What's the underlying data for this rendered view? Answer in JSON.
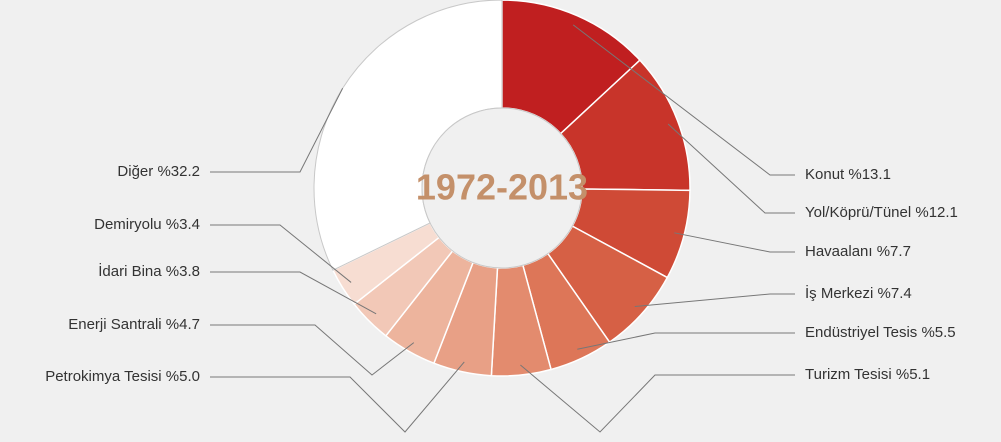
{
  "chart_data": {
    "type": "donut",
    "title": "1972-2013",
    "categories": [
      "Konut",
      "Yol/Köprü/Tünel",
      "Havaalanı",
      "İş Merkezi",
      "Endüstriyel Tesis",
      "Turizm Tesisi",
      "Petrokimya Tesisi",
      "Enerji Santrali",
      "İdari Bina",
      "Demiryolu",
      "Diğer"
    ],
    "values": [
      13.1,
      12.1,
      7.7,
      7.4,
      5.5,
      5.1,
      5.0,
      4.7,
      3.8,
      3.4,
      32.2
    ],
    "value_labels": [
      "%13.1",
      "%12.1",
      "%7.7",
      "%7.4",
      "%5.5",
      "%5.1",
      "%5.0",
      "%4.7",
      "%3.8",
      "%3.4",
      "%32.2"
    ],
    "colors": [
      "#c01f20",
      "#c8342a",
      "#cf4a36",
      "#d66045",
      "#dd7658",
      "#e38b6e",
      "#e8a086",
      "#edb49d",
      "#f2c8b7",
      "#f7ddd2",
      "#ffffff"
    ]
  }
}
